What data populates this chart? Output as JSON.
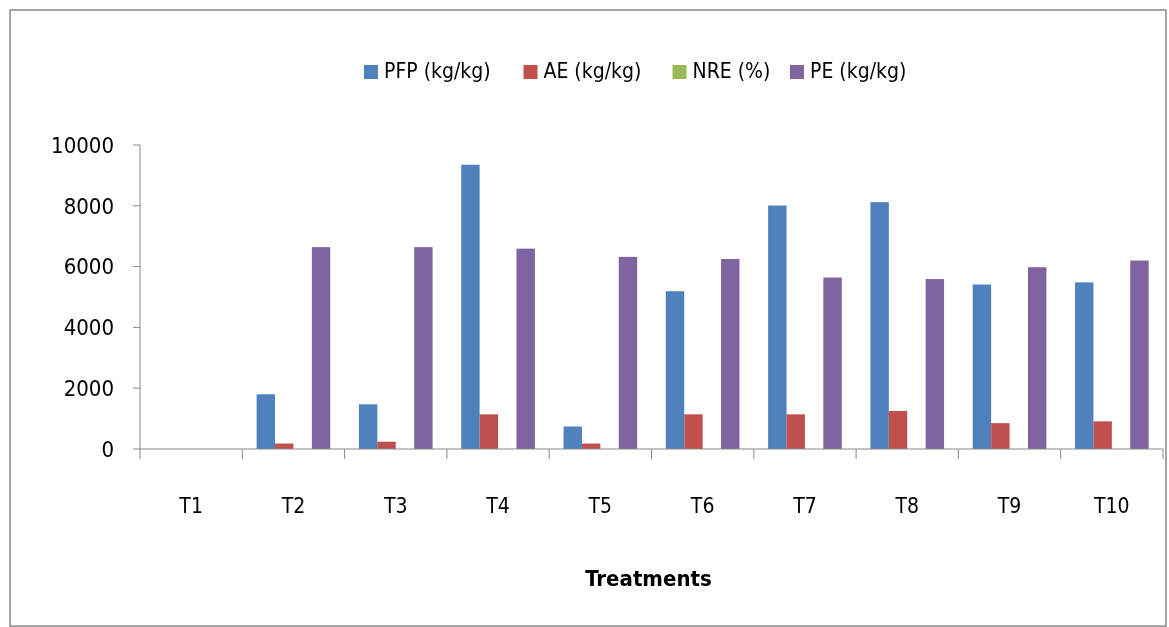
{
  "chart_data": {
    "type": "bar",
    "xlabel": "Treatments",
    "categories": [
      "T1",
      "T2",
      "T3",
      "T4",
      "T5",
      "T6",
      "T7",
      "T8",
      "T9",
      "T10"
    ],
    "series": [
      {
        "name": "PFP (kg/kg)",
        "color": "#4f81bd",
        "values": [
          0,
          1800,
          1470,
          9350,
          740,
          5190,
          8010,
          8120,
          5410,
          5480
        ]
      },
      {
        "name": "AE (kg/kg)",
        "color": "#c0504d",
        "values": [
          0,
          180,
          240,
          1140,
          180,
          1140,
          1140,
          1250,
          850,
          910
        ]
      },
      {
        "name": "NRE (%)",
        "color": "#9bbb59",
        "values": [
          null,
          null,
          null,
          null,
          null,
          null,
          null,
          null,
          null,
          null
        ]
      },
      {
        "name": "PE (kg/kg)",
        "color": "#8064a2",
        "values": [
          0,
          6640,
          6640,
          6590,
          6320,
          6250,
          5640,
          5590,
          5980,
          6200
        ]
      }
    ],
    "ylim": [
      0,
      10000
    ],
    "yticks": [
      0,
      2000,
      4000,
      6000,
      8000,
      10000
    ],
    "legend": "top",
    "grid": false
  }
}
